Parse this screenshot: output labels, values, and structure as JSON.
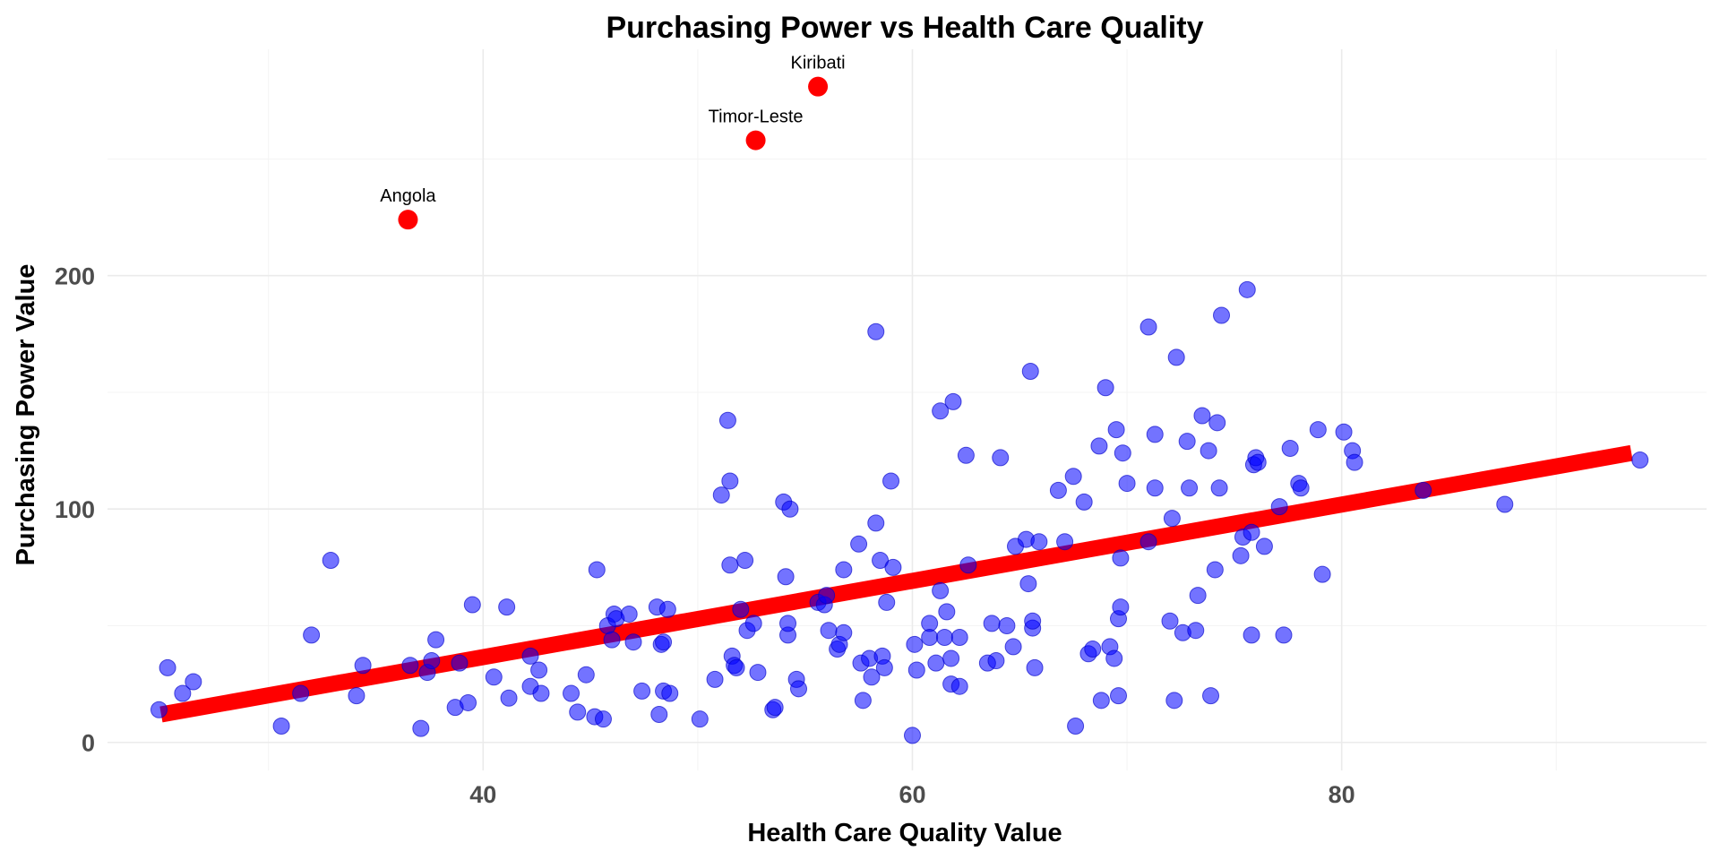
{
  "chart_data": {
    "type": "scatter",
    "title": "Purchasing Power vs Health Care Quality",
    "xlabel": "Health Care Quality Value",
    "ylabel": "Purchasing Power Value",
    "xlim": [
      22.5,
      97
    ],
    "ylim": [
      -12,
      297
    ],
    "x_major_ticks": [
      40,
      60,
      80
    ],
    "x_tick_labels": [
      "40",
      "60",
      "80"
    ],
    "x_minor_ticks": [
      30,
      50,
      70,
      90
    ],
    "y_major_ticks": [
      0,
      100,
      200
    ],
    "y_tick_labels": [
      "0",
      "100",
      "200"
    ],
    "y_minor_ticks": [
      50,
      150,
      250
    ],
    "grid": true,
    "legend": "none",
    "colors": {
      "points": "#0000ff",
      "outliers": "#ff0000",
      "trend": "#ff0000"
    },
    "trend_line": {
      "x": [
        25,
        93.5
      ],
      "y": [
        12,
        124
      ]
    },
    "outliers": [
      {
        "name": "Kiribati",
        "x": 55.6,
        "y": 281
      },
      {
        "name": "Timor-Leste",
        "x": 52.7,
        "y": 258
      },
      {
        "name": "Angola",
        "x": 36.5,
        "y": 224
      }
    ],
    "points": [
      [
        24.9,
        14
      ],
      [
        25.3,
        32
      ],
      [
        26.0,
        21
      ],
      [
        26.5,
        26
      ],
      [
        30.6,
        7
      ],
      [
        31.5,
        21
      ],
      [
        32.0,
        46
      ],
      [
        32.9,
        78
      ],
      [
        34.1,
        20
      ],
      [
        34.4,
        33
      ],
      [
        36.6,
        33
      ],
      [
        37.1,
        6
      ],
      [
        37.4,
        30
      ],
      [
        37.6,
        35
      ],
      [
        37.8,
        44
      ],
      [
        38.7,
        15
      ],
      [
        38.9,
        34
      ],
      [
        39.3,
        17
      ],
      [
        39.5,
        59
      ],
      [
        40.5,
        28
      ],
      [
        41.1,
        58
      ],
      [
        41.2,
        19
      ],
      [
        42.2,
        24
      ],
      [
        42.2,
        37
      ],
      [
        42.6,
        31
      ],
      [
        42.7,
        21
      ],
      [
        44.1,
        21
      ],
      [
        44.4,
        13
      ],
      [
        44.8,
        29
      ],
      [
        45.2,
        11
      ],
      [
        45.3,
        74
      ],
      [
        45.6,
        10
      ],
      [
        45.8,
        50
      ],
      [
        46.0,
        44
      ],
      [
        46.1,
        55
      ],
      [
        46.2,
        53
      ],
      [
        46.8,
        55
      ],
      [
        47.0,
        43
      ],
      [
        47.4,
        22
      ],
      [
        48.1,
        58
      ],
      [
        48.2,
        12
      ],
      [
        48.3,
        42
      ],
      [
        48.4,
        43
      ],
      [
        48.4,
        22
      ],
      [
        48.6,
        57
      ],
      [
        48.7,
        21
      ],
      [
        50.1,
        10
      ],
      [
        50.8,
        27
      ],
      [
        51.1,
        106
      ],
      [
        51.4,
        138
      ],
      [
        51.5,
        112
      ],
      [
        51.5,
        76
      ],
      [
        51.6,
        37
      ],
      [
        51.7,
        33
      ],
      [
        51.8,
        32
      ],
      [
        52.0,
        57
      ],
      [
        52.2,
        78
      ],
      [
        52.3,
        48
      ],
      [
        52.6,
        51
      ],
      [
        52.8,
        30
      ],
      [
        53.5,
        14
      ],
      [
        53.6,
        15
      ],
      [
        54.0,
        103
      ],
      [
        54.1,
        71
      ],
      [
        54.2,
        46
      ],
      [
        54.2,
        51
      ],
      [
        54.3,
        100
      ],
      [
        54.6,
        27
      ],
      [
        54.7,
        23
      ],
      [
        55.6,
        60
      ],
      [
        55.9,
        59
      ],
      [
        56.0,
        63
      ],
      [
        56.1,
        48
      ],
      [
        56.5,
        40
      ],
      [
        56.6,
        42
      ],
      [
        56.8,
        47
      ],
      [
        56.8,
        74
      ],
      [
        57.5,
        85
      ],
      [
        57.6,
        34
      ],
      [
        57.7,
        18
      ],
      [
        58.0,
        36
      ],
      [
        58.1,
        28
      ],
      [
        58.3,
        94
      ],
      [
        58.3,
        176
      ],
      [
        58.5,
        78
      ],
      [
        58.6,
        37
      ],
      [
        58.7,
        32
      ],
      [
        58.8,
        60
      ],
      [
        59.0,
        112
      ],
      [
        59.1,
        75
      ],
      [
        60.0,
        3
      ],
      [
        60.1,
        42
      ],
      [
        60.2,
        31
      ],
      [
        60.8,
        51
      ],
      [
        60.8,
        45
      ],
      [
        61.1,
        34
      ],
      [
        61.3,
        65
      ],
      [
        61.3,
        142
      ],
      [
        61.5,
        45
      ],
      [
        61.6,
        56
      ],
      [
        61.8,
        25
      ],
      [
        61.8,
        36
      ],
      [
        61.9,
        146
      ],
      [
        62.2,
        45
      ],
      [
        62.2,
        24
      ],
      [
        62.5,
        123
      ],
      [
        62.6,
        76
      ],
      [
        63.5,
        34
      ],
      [
        63.7,
        51
      ],
      [
        63.9,
        35
      ],
      [
        64.1,
        122
      ],
      [
        64.4,
        50
      ],
      [
        64.7,
        41
      ],
      [
        64.8,
        84
      ],
      [
        65.3,
        87
      ],
      [
        65.4,
        68
      ],
      [
        65.5,
        159
      ],
      [
        65.6,
        49
      ],
      [
        65.6,
        52
      ],
      [
        65.7,
        32
      ],
      [
        65.9,
        86
      ],
      [
        66.8,
        108
      ],
      [
        67.1,
        86
      ],
      [
        67.5,
        114
      ],
      [
        67.6,
        7
      ],
      [
        68.0,
        103
      ],
      [
        68.2,
        38
      ],
      [
        68.4,
        40
      ],
      [
        68.7,
        127
      ],
      [
        68.8,
        18
      ],
      [
        69.0,
        152
      ],
      [
        69.2,
        41
      ],
      [
        69.4,
        36
      ],
      [
        69.5,
        134
      ],
      [
        69.6,
        20
      ],
      [
        69.6,
        53
      ],
      [
        69.7,
        58
      ],
      [
        69.7,
        79
      ],
      [
        69.8,
        124
      ],
      [
        70.0,
        111
      ],
      [
        71.0,
        178
      ],
      [
        71.0,
        86
      ],
      [
        71.3,
        132
      ],
      [
        71.3,
        109
      ],
      [
        72.0,
        52
      ],
      [
        72.1,
        96
      ],
      [
        72.2,
        18
      ],
      [
        72.3,
        165
      ],
      [
        72.6,
        47
      ],
      [
        72.8,
        129
      ],
      [
        72.9,
        109
      ],
      [
        73.2,
        48
      ],
      [
        73.3,
        63
      ],
      [
        73.5,
        140
      ],
      [
        73.8,
        125
      ],
      [
        73.9,
        20
      ],
      [
        74.1,
        74
      ],
      [
        74.2,
        137
      ],
      [
        74.3,
        109
      ],
      [
        74.4,
        183
      ],
      [
        75.3,
        80
      ],
      [
        75.4,
        88
      ],
      [
        75.6,
        194
      ],
      [
        75.8,
        46
      ],
      [
        75.8,
        90
      ],
      [
        75.9,
        119
      ],
      [
        76.0,
        122
      ],
      [
        76.1,
        120
      ],
      [
        76.4,
        84
      ],
      [
        77.1,
        101
      ],
      [
        77.3,
        46
      ],
      [
        77.6,
        126
      ],
      [
        78.0,
        111
      ],
      [
        78.1,
        109
      ],
      [
        78.9,
        134
      ],
      [
        79.1,
        72
      ],
      [
        80.1,
        133
      ],
      [
        80.5,
        125
      ],
      [
        80.6,
        120
      ],
      [
        83.8,
        108
      ],
      [
        87.6,
        102
      ],
      [
        93.9,
        121
      ]
    ]
  }
}
